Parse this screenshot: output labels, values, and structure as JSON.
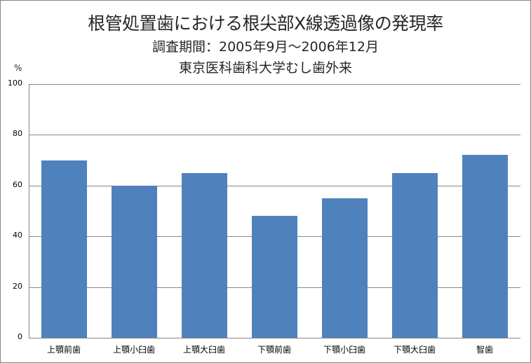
{
  "chart_data": {
    "type": "bar",
    "title": "根管処置歯における根尖部X線透過像の発現率",
    "subtitle": "調査期間：2005年9月～2006年12月",
    "subtitle2": "東京医科歯科大学むし歯外来",
    "xlabel": "",
    "ylabel": "%",
    "ylim": [
      0,
      100
    ],
    "yticks": [
      "100",
      "80",
      "60",
      "40",
      "20",
      "0"
    ],
    "grid": true,
    "legend": "none",
    "bar_color": "#4f81bd",
    "categories": [
      "上顎前歯",
      "上顎小臼歯",
      "上顎大臼歯",
      "下顎前歯",
      "下顎小臼歯",
      "下顎大臼歯",
      "智歯"
    ],
    "values": [
      70,
      60,
      65,
      48,
      55,
      65,
      72
    ]
  }
}
